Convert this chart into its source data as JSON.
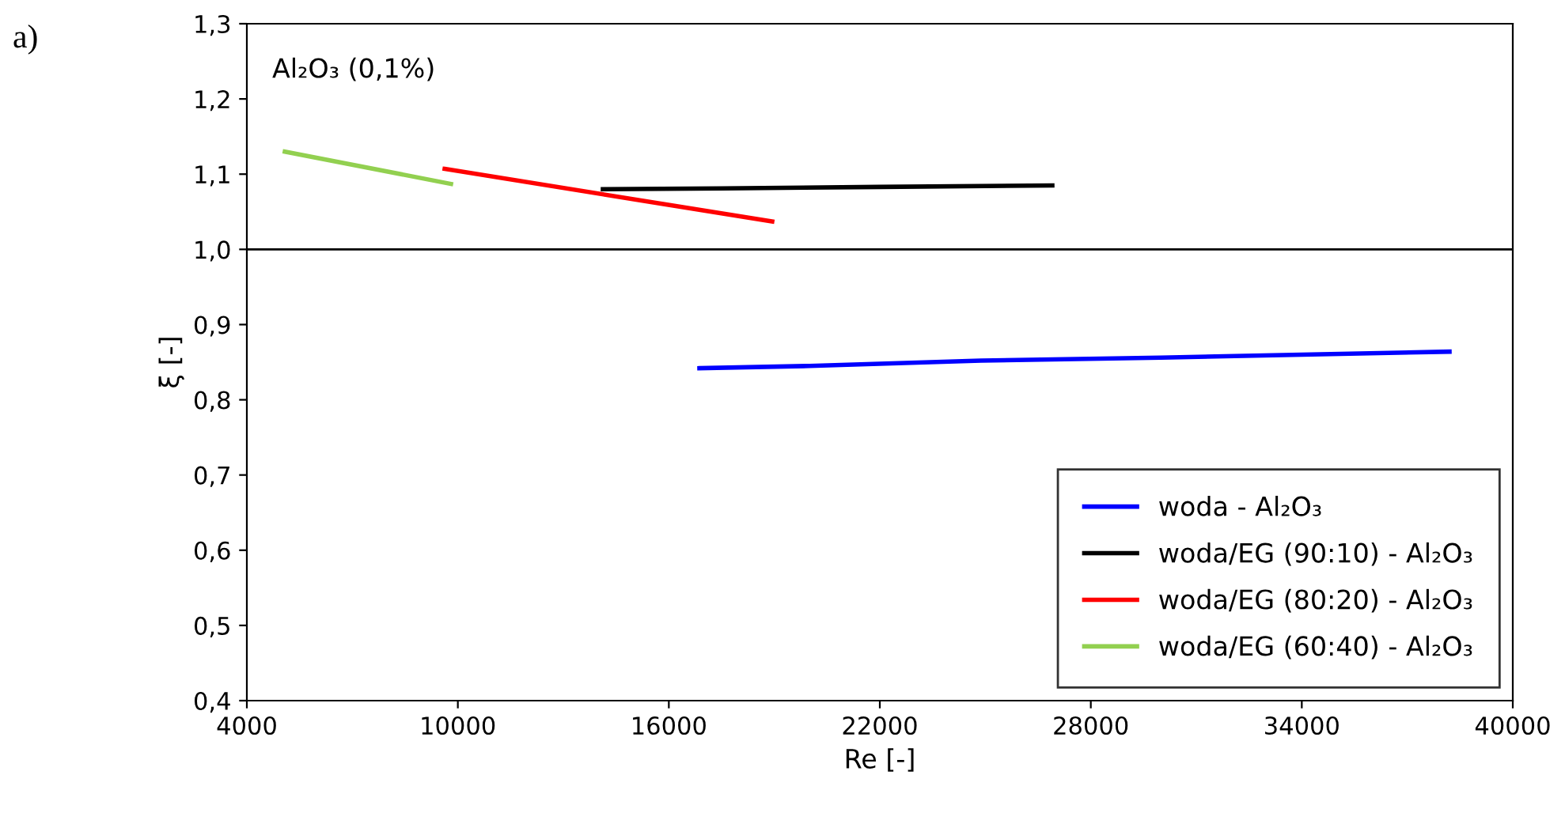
{
  "chart_data": {
    "type": "line",
    "xlabel": "Re [-]",
    "ylabel": "ξ [-]",
    "annotations": [
      "a)",
      "Al₂O₃ (0,1%)"
    ],
    "series": [
      {
        "name": "woda - Al₂O₃",
        "color": "#0000ff",
        "x": [
          16870,
          20000,
          24880,
          30000,
          34000,
          38200
        ],
        "values": [
          0.842,
          0.845,
          0.852,
          0.856,
          0.86,
          0.864
        ]
      },
      {
        "name": "woda/EG (90:10) - Al₂O₃",
        "color": "#000000",
        "x": [
          14125,
          17500,
          22000,
          26905
        ],
        "values": [
          1.08,
          1.081,
          1.083,
          1.085
        ]
      },
      {
        "name": "woda/EG (80:20) - Al₂O₃",
        "color": "#ff0000",
        "x": [
          9625,
          18940
        ],
        "values": [
          1.107,
          1.037
        ]
      },
      {
        "name": "woda/EG (60:40) - Al₂O₃",
        "color": "#92d050",
        "x": [
          5080,
          9805
        ],
        "values": [
          1.13,
          1.087
        ]
      }
    ],
    "ref_lines": [
      {
        "axis": "y",
        "value": 1.0,
        "color": "#000000"
      }
    ],
    "xlim": [
      4000,
      40000
    ],
    "xticks": [
      4000,
      10000,
      16000,
      22000,
      28000,
      34000,
      40000
    ],
    "ylim": [
      0.4,
      1.3
    ],
    "yticks": [
      {
        "value": 0.4,
        "label": "0,4"
      },
      {
        "value": 0.5,
        "label": "0,5"
      },
      {
        "value": 0.6,
        "label": "0,6"
      },
      {
        "value": 0.7,
        "label": "0,7"
      },
      {
        "value": 0.8,
        "label": "0,8"
      },
      {
        "value": 0.9,
        "label": "0,9"
      },
      {
        "value": 1.0,
        "label": "1,0"
      },
      {
        "value": 1.1,
        "label": "1,1"
      },
      {
        "value": 1.2,
        "label": "1,2"
      },
      {
        "value": 1.3,
        "label": "1,3"
      }
    ],
    "grid": false,
    "legend": "bottom right",
    "marker": "none",
    "line_style": "solid"
  }
}
